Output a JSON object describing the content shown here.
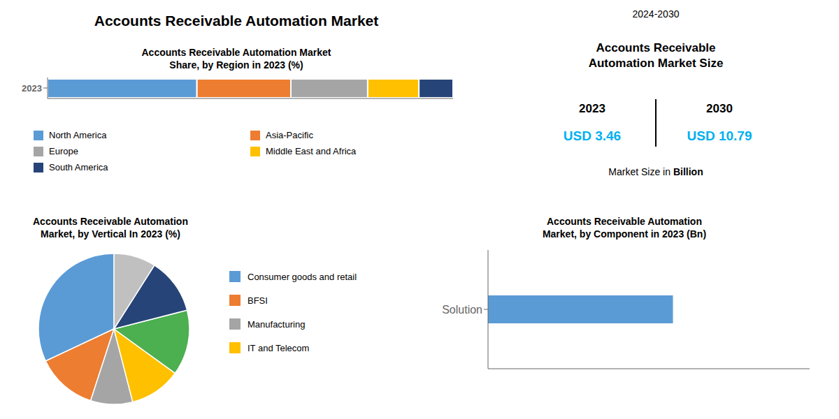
{
  "title": "Accounts Receivable Automation Market",
  "subtitle": "2024-2030",
  "chart_data": [
    {
      "type": "bar",
      "orientation": "horizontal",
      "stacked": true,
      "title": "Accounts Receivable Automation Market\nShare, by Region in 2023 (%)",
      "categories": [
        "2023"
      ],
      "series": [
        {
          "name": "North America",
          "color": "#5B9BD5",
          "values": [
            0.3684210526315789
          ]
        },
        {
          "name": "Asia-Pacific",
          "color": "#ED7D31",
          "values": [
            0.23157894736842105
          ]
        },
        {
          "name": "Europe",
          "color": "#A5A5A5",
          "values": [
            0.18947368421052632
          ]
        },
        {
          "name": "Middle East and Africa",
          "color": "#FFC000",
          "values": [
            0.12631578947368421
          ]
        },
        {
          "name": "South America",
          "color": "#264478",
          "values": [
            0.08421052631578947
          ]
        }
      ],
      "xlim": [
        0,
        1
      ],
      "xticks": [],
      "tick_labels": "y"
    },
    {
      "type": "text",
      "title": "Accounts Receivable\nAutomation Market Size",
      "categories": [
        "2023",
        "2030"
      ],
      "values": [
        3.46,
        10.79
      ],
      "value_labels": [
        "USD 3.46",
        "USD 10.79"
      ],
      "color": "#00B0F0",
      "annotations": [
        "Market Size in Billion"
      ]
    },
    {
      "type": "pie",
      "title": "Accounts Receivable Automation\nMarket, by Vertical In 2023 (%)",
      "categories": [
        "Consumer goods and retail",
        "BFSI",
        "Manufacturing",
        "IT and Telecom",
        null,
        null,
        null
      ],
      "values": [
        32,
        13,
        9,
        11,
        14,
        12,
        9
      ],
      "colors": [
        "#5B9BD5",
        "#ED7D31",
        "#A5A5A5",
        "#FFC000",
        "#4CAF50",
        "#264478",
        "#C0C0C0"
      ]
    },
    {
      "type": "bar",
      "orientation": "horizontal",
      "title": "Accounts Receivable Automation\nMarket, by Component in 2023 (Bn)",
      "categories": [
        "Solution"
      ],
      "values": [
        2.3
      ],
      "color": "#5B9BD5",
      "xlim": [
        0,
        4
      ],
      "xticks": [],
      "tick_labels": "y"
    }
  ]
}
